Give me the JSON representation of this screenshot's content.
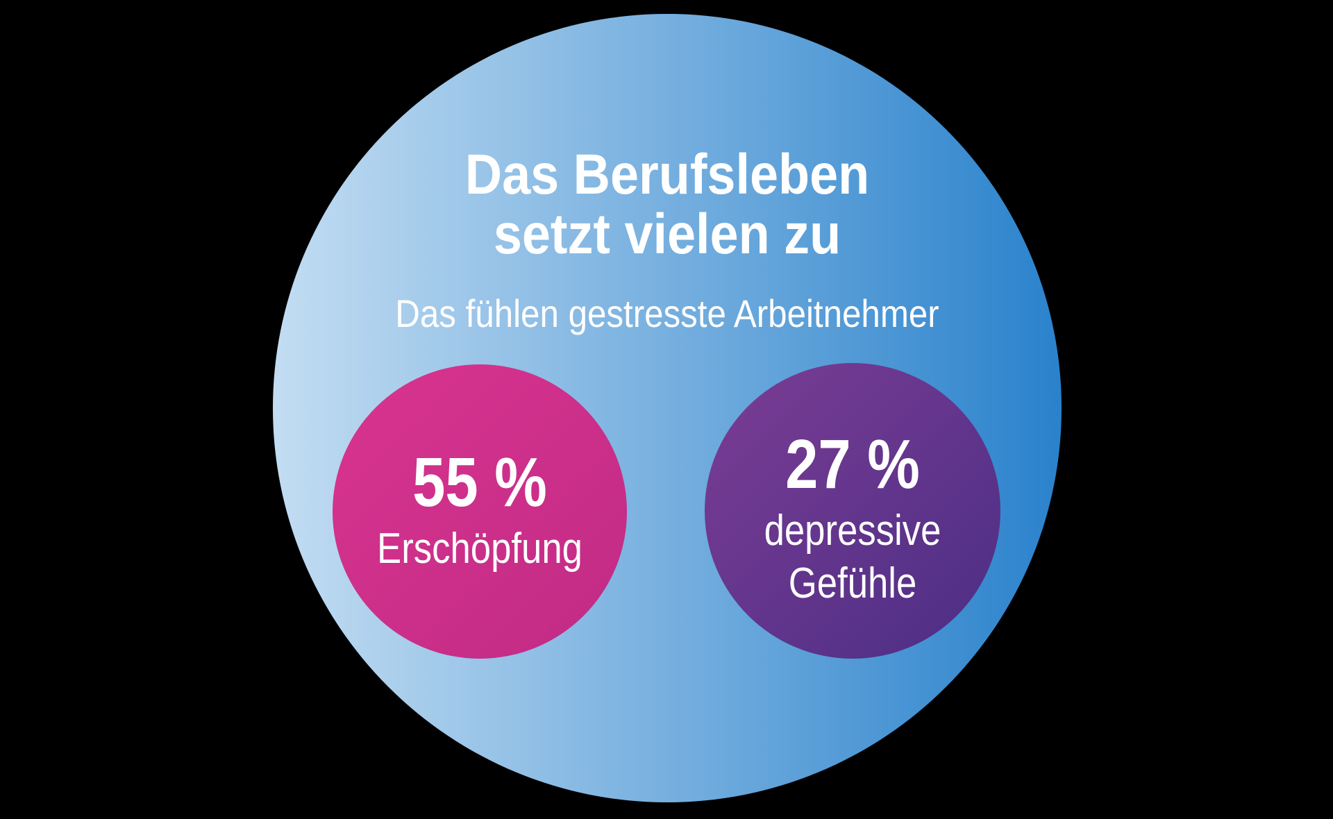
{
  "canvas": {
    "background": "#000000"
  },
  "main_circle": {
    "gradient_start": "#c3ddf2",
    "gradient_end": "#2a82cc",
    "gradient_angle": "90deg",
    "text_color": "#ffffff",
    "title_line1": "Das Berufsleben",
    "title_line2": "setzt vielen zu",
    "subtitle": "Das fühlen gestresste Arbeitnehmer"
  },
  "bubbles": [
    {
      "value": "55 %",
      "label": "Erschöpfung",
      "gradient_start": "#d9348f",
      "gradient_end": "#c02b85",
      "gradient_angle": "135deg"
    },
    {
      "value": "27 %",
      "label": "depressive Gefühle",
      "gradient_start": "#7c3d95",
      "gradient_end": "#4b2e84",
      "gradient_angle": "135deg"
    }
  ],
  "chart_data": {
    "type": "bubble",
    "title": "Das Berufsleben setzt vielen zu",
    "subtitle": "Das fühlen gestresste Arbeitnehmer",
    "categories": [
      "Erschöpfung",
      "depressive Gefühle"
    ],
    "values": [
      55,
      27
    ],
    "unit": "%",
    "value_labels": [
      "55 %",
      "27 %"
    ],
    "colors": [
      "#cc2f8b",
      "#5f3590"
    ],
    "background_circle_color_range": [
      "#c3ddf2",
      "#2a82cc"
    ],
    "page_background": "#000000",
    "legend_position": "none",
    "grid": false
  }
}
